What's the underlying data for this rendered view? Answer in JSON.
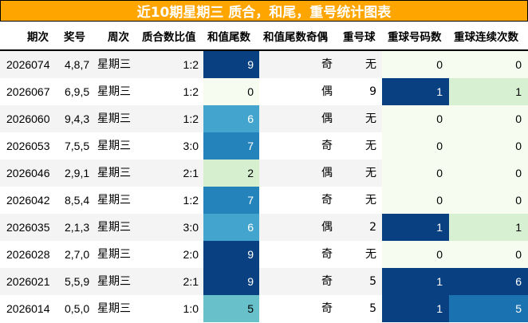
{
  "title": "近10期星期三 质合，和尾，重号统计图表",
  "columns": [
    "期次",
    "奖号",
    "周次",
    "质合数比值",
    "和值尾数",
    "和值尾数奇偶",
    "重号球",
    "重球号码数",
    "重球连续次数"
  ],
  "colors": {
    "title_bg": "#FFA500",
    "row_odd": "#f4f4f4",
    "row_even": "#ffffff",
    "heat_light_text": "#ffffff",
    "heat_dark_text": "#000000"
  },
  "rows": [
    {
      "issue": "2026074",
      "numbers": "4,8,7",
      "weekday": "星期三",
      "prime_ratio": "1:2",
      "sum_tail": "9",
      "sum_tail_bg": "#084081",
      "sum_tail_fg": "#ffffff",
      "parity": "奇",
      "repeat_ball": "无",
      "repeat_count": "0",
      "repeat_count_bg": "#f7fcf0",
      "repeat_count_fg": "#000000",
      "consec": "0",
      "consec_bg": "#f7fcf0",
      "consec_fg": "#000000"
    },
    {
      "issue": "2026067",
      "numbers": "6,9,5",
      "weekday": "星期三",
      "prime_ratio": "1:2",
      "sum_tail": "0",
      "sum_tail_bg": "#f7fcf0",
      "sum_tail_fg": "#000000",
      "parity": "偶",
      "repeat_ball": "9",
      "repeat_count": "1",
      "repeat_count_bg": "#084081",
      "repeat_count_fg": "#ffffff",
      "consec": "1",
      "consec_bg": "#d8f0d2",
      "consec_fg": "#000000"
    },
    {
      "issue": "2026060",
      "numbers": "9,4,3",
      "weekday": "星期三",
      "prime_ratio": "1:2",
      "sum_tail": "6",
      "sum_tail_bg": "#43a5cd",
      "sum_tail_fg": "#ffffff",
      "parity": "偶",
      "repeat_ball": "无",
      "repeat_count": "0",
      "repeat_count_bg": "#f7fcf0",
      "repeat_count_fg": "#000000",
      "consec": "0",
      "consec_bg": "#f7fcf0",
      "consec_fg": "#000000"
    },
    {
      "issue": "2026053",
      "numbers": "7,5,5",
      "weekday": "星期三",
      "prime_ratio": "3:0",
      "sum_tail": "7",
      "sum_tail_bg": "#2383ba",
      "sum_tail_fg": "#ffffff",
      "parity": "奇",
      "repeat_ball": "无",
      "repeat_count": "0",
      "repeat_count_bg": "#f7fcf0",
      "repeat_count_fg": "#000000",
      "consec": "0",
      "consec_bg": "#f7fcf0",
      "consec_fg": "#000000"
    },
    {
      "issue": "2026046",
      "numbers": "2,9,1",
      "weekday": "星期三",
      "prime_ratio": "2:1",
      "sum_tail": "2",
      "sum_tail_bg": "#d5efcf",
      "sum_tail_fg": "#000000",
      "parity": "偶",
      "repeat_ball": "无",
      "repeat_count": "0",
      "repeat_count_bg": "#f7fcf0",
      "repeat_count_fg": "#000000",
      "consec": "0",
      "consec_bg": "#f7fcf0",
      "consec_fg": "#000000"
    },
    {
      "issue": "2026042",
      "numbers": "8,5,4",
      "weekday": "星期三",
      "prime_ratio": "1:2",
      "sum_tail": "7",
      "sum_tail_bg": "#2383ba",
      "sum_tail_fg": "#ffffff",
      "parity": "奇",
      "repeat_ball": "无",
      "repeat_count": "0",
      "repeat_count_bg": "#f7fcf0",
      "repeat_count_fg": "#000000",
      "consec": "0",
      "consec_bg": "#f7fcf0",
      "consec_fg": "#000000"
    },
    {
      "issue": "2026035",
      "numbers": "2,1,3",
      "weekday": "星期三",
      "prime_ratio": "3:0",
      "sum_tail": "6",
      "sum_tail_bg": "#43a5cd",
      "sum_tail_fg": "#ffffff",
      "parity": "偶",
      "repeat_ball": "2",
      "repeat_count": "1",
      "repeat_count_bg": "#084081",
      "repeat_count_fg": "#ffffff",
      "consec": "1",
      "consec_bg": "#d8f0d2",
      "consec_fg": "#000000"
    },
    {
      "issue": "2026028",
      "numbers": "2,7,0",
      "weekday": "星期三",
      "prime_ratio": "2:0",
      "sum_tail": "9",
      "sum_tail_bg": "#084081",
      "sum_tail_fg": "#ffffff",
      "parity": "奇",
      "repeat_ball": "无",
      "repeat_count": "0",
      "repeat_count_bg": "#f7fcf0",
      "repeat_count_fg": "#000000",
      "consec": "0",
      "consec_bg": "#f7fcf0",
      "consec_fg": "#000000"
    },
    {
      "issue": "2026021",
      "numbers": "5,5,9",
      "weekday": "星期三",
      "prime_ratio": "2:1",
      "sum_tail": "9",
      "sum_tail_bg": "#084081",
      "sum_tail_fg": "#ffffff",
      "parity": "奇",
      "repeat_ball": "5",
      "repeat_count": "1",
      "repeat_count_bg": "#084081",
      "repeat_count_fg": "#ffffff",
      "consec": "6",
      "consec_bg": "#084081",
      "consec_fg": "#ffffff"
    },
    {
      "issue": "2026014",
      "numbers": "0,5,0",
      "weekday": "星期三",
      "prime_ratio": "1:0",
      "sum_tail": "5",
      "sum_tail_bg": "#67c0ca",
      "sum_tail_fg": "#000000",
      "parity": "奇",
      "repeat_ball": "5",
      "repeat_count": "1",
      "repeat_count_bg": "#084081",
      "repeat_count_fg": "#ffffff",
      "consec": "5",
      "consec_bg": "#1a72b0",
      "consec_fg": "#ffffff"
    }
  ],
  "chart_data": {
    "type": "table",
    "title": "近10期星期三 质合，和尾，重号统计图表",
    "columns": [
      "期次",
      "奖号",
      "周次",
      "质合数比值",
      "和值尾数",
      "和值尾数奇偶",
      "重号球",
      "重球号码数",
      "重球连续次数"
    ],
    "rows": [
      [
        "2026074",
        "4,8,7",
        "星期三",
        "1:2",
        9,
        "奇",
        "无",
        0,
        0
      ],
      [
        "2026067",
        "6,9,5",
        "星期三",
        "1:2",
        0,
        "偶",
        "9",
        1,
        1
      ],
      [
        "2026060",
        "9,4,3",
        "星期三",
        "1:2",
        6,
        "偶",
        "无",
        0,
        0
      ],
      [
        "2026053",
        "7,5,5",
        "星期三",
        "3:0",
        7,
        "奇",
        "无",
        0,
        0
      ],
      [
        "2026046",
        "2,9,1",
        "星期三",
        "2:1",
        2,
        "偶",
        "无",
        0,
        0
      ],
      [
        "2026042",
        "8,5,4",
        "星期三",
        "1:2",
        7,
        "奇",
        "无",
        0,
        0
      ],
      [
        "2026035",
        "2,1,3",
        "星期三",
        "3:0",
        6,
        "偶",
        "2",
        1,
        1
      ],
      [
        "2026028",
        "2,7,0",
        "星期三",
        "2:0",
        9,
        "奇",
        "无",
        0,
        0
      ],
      [
        "2026021",
        "5,5,9",
        "星期三",
        "2:1",
        9,
        "奇",
        "5",
        1,
        6
      ],
      [
        "2026014",
        "0,5,0",
        "星期三",
        "1:0",
        5,
        "奇",
        "5",
        1,
        5
      ]
    ],
    "heatmap_columns": [
      "和值尾数",
      "重球号码数",
      "重球连续次数"
    ],
    "colormap": "GnBu"
  }
}
